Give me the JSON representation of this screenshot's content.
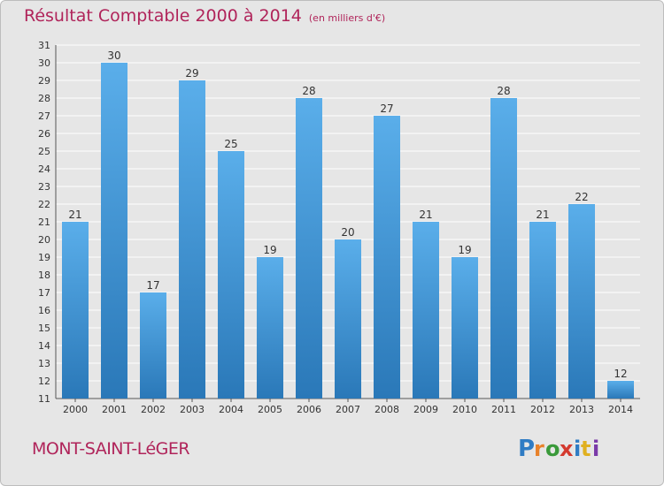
{
  "title": "Résultat Comptable 2000 à 2014",
  "unit": "(en milliers d'€)",
  "commune": "MONT-SAINT-LéGER",
  "logo_text": "Proxiti",
  "colors": {
    "title": "#b0245a",
    "bar_light": "#5aaeea",
    "bar_dark": "#2a78b8",
    "background": "#e6e6e6",
    "grid": "#ffffff"
  },
  "chart_data": {
    "type": "bar",
    "categories": [
      "2000",
      "2001",
      "2002",
      "2003",
      "2004",
      "2005",
      "2006",
      "2007",
      "2008",
      "2009",
      "2010",
      "2011",
      "2012",
      "2013",
      "2014"
    ],
    "values": [
      21,
      30,
      17,
      29,
      25,
      19,
      28,
      20,
      27,
      21,
      19,
      28,
      21,
      22,
      12
    ],
    "ylim": [
      11,
      31
    ],
    "yticks": [
      11,
      12,
      13,
      14,
      15,
      16,
      17,
      18,
      19,
      20,
      21,
      22,
      23,
      24,
      25,
      26,
      27,
      28,
      29,
      30,
      31
    ],
    "grid": true,
    "title": "Résultat Comptable 2000 à 2014",
    "xlabel": "",
    "ylabel": ""
  }
}
